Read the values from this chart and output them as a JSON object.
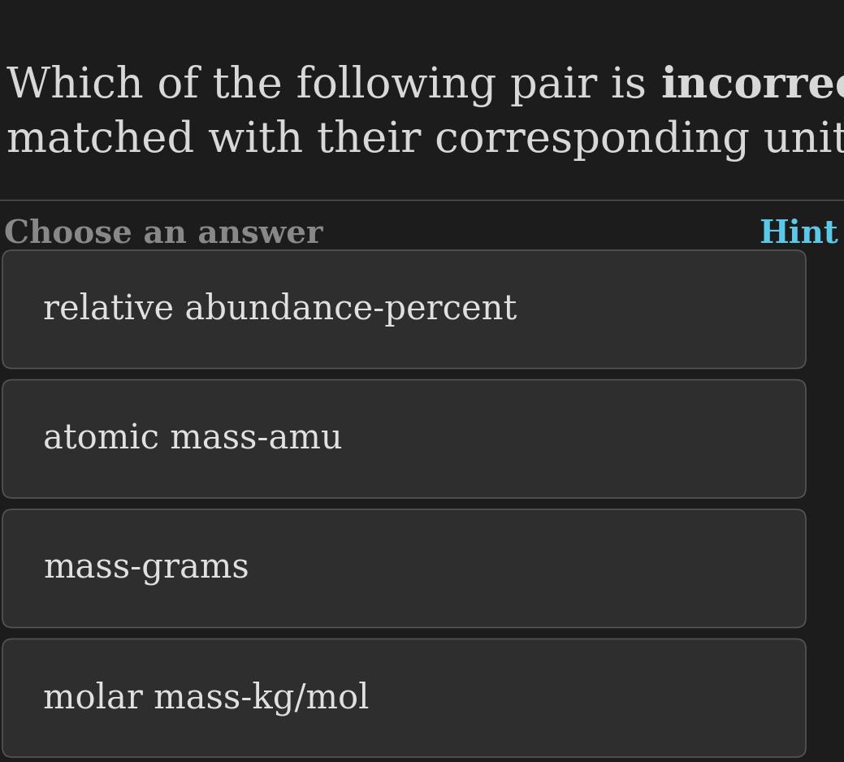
{
  "background_color": "#1c1c1c",
  "title_part1": "Which of the following pair is ",
  "title_bold": "incorrectly",
  "title_part2": "matched with their corresponding unit?",
  "divider_color": "#555555",
  "choose_label": "Choose an answer",
  "hint_label": "Hint",
  "hint_color": "#5bc8e8",
  "choose_color": "#888888",
  "options": [
    "relative abundance-percent",
    "atomic mass-amu",
    "mass-grams",
    "molar mass-kg/mol"
  ],
  "option_bg_color": "#2e2e2e",
  "option_text_color": "#e0e0e0",
  "option_border_color": "#555555",
  "title_color": "#d8d8d8",
  "title_fontsize": 38,
  "choose_fontsize": 28,
  "option_fontsize": 30
}
